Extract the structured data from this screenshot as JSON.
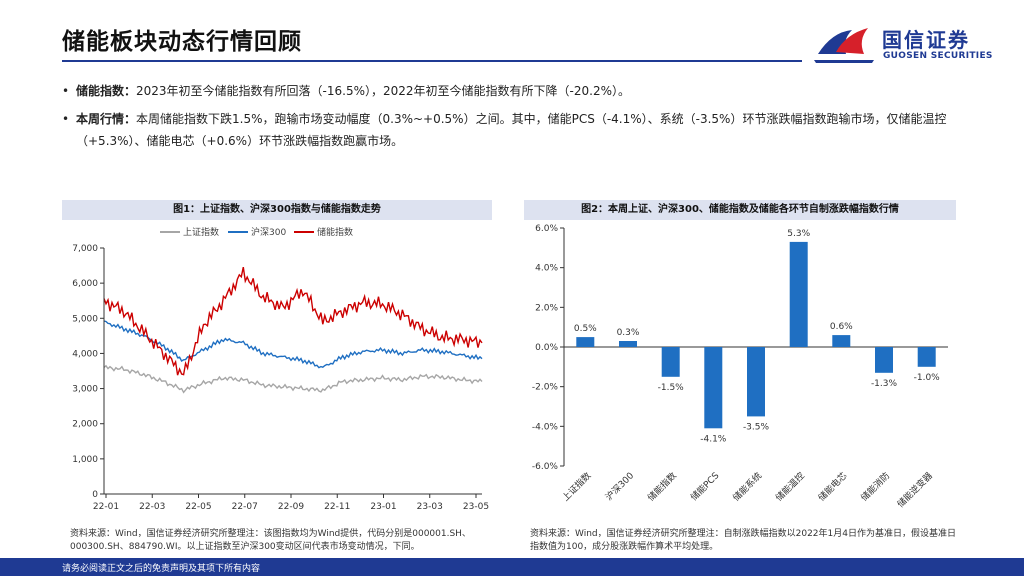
{
  "page": {
    "title": "储能板块动态行情回顾",
    "logo_cn": "国信证券",
    "logo_en": "GUOSEN SECURITIES",
    "footer": "请务必阅读正文之后的免责声明及其项下所有内容"
  },
  "bullets": [
    {
      "label": "储能指数：",
      "text": "2023年初至今储能指数有所回落（-16.5%），2022年初至今储能指数有所下降（-20.2%）。"
    },
    {
      "label": "本周行情：",
      "text": "本周储能指数下跌1.5%，跑输市场变动幅度（0.3%~+0.5%）之间。其中，储能PCS（-4.1%）、系统（-3.5%）环节涨跌幅指数跑输市场，仅储能温控（+5.3%）、储能电芯（+0.6%）环节涨跌幅指数跑赢市场。"
    }
  ],
  "chart1": {
    "heading": "图1：上证指数、沪深300指数与储能指数走势",
    "source": "资料来源：Wind，国信证券经济研究所整理注：该图指数均为Wind提供，代码分别是000001.SH、000300.SH、884790.WI。以上证指数至沪深300变动区间代表市场变动情况，下同。"
  },
  "chart2": {
    "heading": "图2：本周上证、沪深300、储能指数及储能各环节自制涨跌幅指数行情",
    "source": "资料来源：Wind，国信证券经济研究所整理注：自制涨跌幅指数以2022年1月4日作为基准日，假设基准日指数值为100，成分股涨跌幅作算术平均处理。"
  },
  "chart_data": [
    {
      "type": "line",
      "title": "图1：上证指数、沪深300指数与储能指数走势",
      "x_ticks": [
        "22-01",
        "22-03",
        "22-05",
        "22-07",
        "22-09",
        "22-11",
        "23-01",
        "23-03",
        "23-05"
      ],
      "ylim": [
        0,
        7000
      ],
      "y_ticks": [
        "0",
        "1,000",
        "2,000",
        "3,000",
        "4,000",
        "5,000",
        "6,000",
        "7,000"
      ],
      "y_tick_values": [
        0,
        1000,
        2000,
        3000,
        4000,
        5000,
        6000,
        7000
      ],
      "series": [
        {
          "name": "上证指数",
          "color": "#a6a6a6",
          "values": [
            3600,
            3550,
            3400,
            3200,
            2950,
            3150,
            3300,
            3250,
            3100,
            3050,
            3000,
            2950,
            3200,
            3250,
            3300,
            3250,
            3350,
            3330,
            3250,
            3200
          ]
        },
        {
          "name": "沪深300",
          "color": "#1f6fc2",
          "values": [
            4900,
            4700,
            4500,
            4200,
            3800,
            4100,
            4400,
            4300,
            4000,
            3900,
            3800,
            3600,
            3900,
            4050,
            4100,
            4000,
            4100,
            4050,
            3950,
            3850
          ]
        },
        {
          "name": "储能指数",
          "color": "#cc0000",
          "values": [
            5500,
            5200,
            4600,
            4000,
            3400,
            4800,
            5500,
            6300,
            5600,
            5300,
            5800,
            4900,
            5200,
            5450,
            5400,
            5100,
            4700,
            4450,
            4400,
            4300
          ]
        }
      ]
    },
    {
      "type": "bar",
      "title": "图2：本周上证、沪深300、储能指数及储能各环节自制涨跌幅指数行情",
      "categories": [
        "上证指数",
        "沪深300",
        "储能指数",
        "储能PCS",
        "储能系统",
        "储能温控",
        "储能电芯",
        "储能消防",
        "储能逆变器"
      ],
      "values": [
        0.5,
        0.3,
        -1.5,
        -4.1,
        -3.5,
        5.3,
        0.6,
        -1.3,
        -1.0
      ],
      "labels": [
        "0.5%",
        "0.3%",
        "-1.5%",
        "-4.1%",
        "-3.5%",
        "5.3%",
        "0.6%",
        "-1.3%",
        "-1.0%"
      ],
      "ylim": [
        -6,
        6
      ],
      "y_ticks": [
        "6.0%",
        "4.0%",
        "2.0%",
        "0.0%",
        "-2.0%",
        "-4.0%",
        "-6.0%"
      ],
      "y_tick_values": [
        6,
        4,
        2,
        0,
        -2,
        -4,
        -6
      ],
      "color": "#1f6fc2"
    }
  ]
}
